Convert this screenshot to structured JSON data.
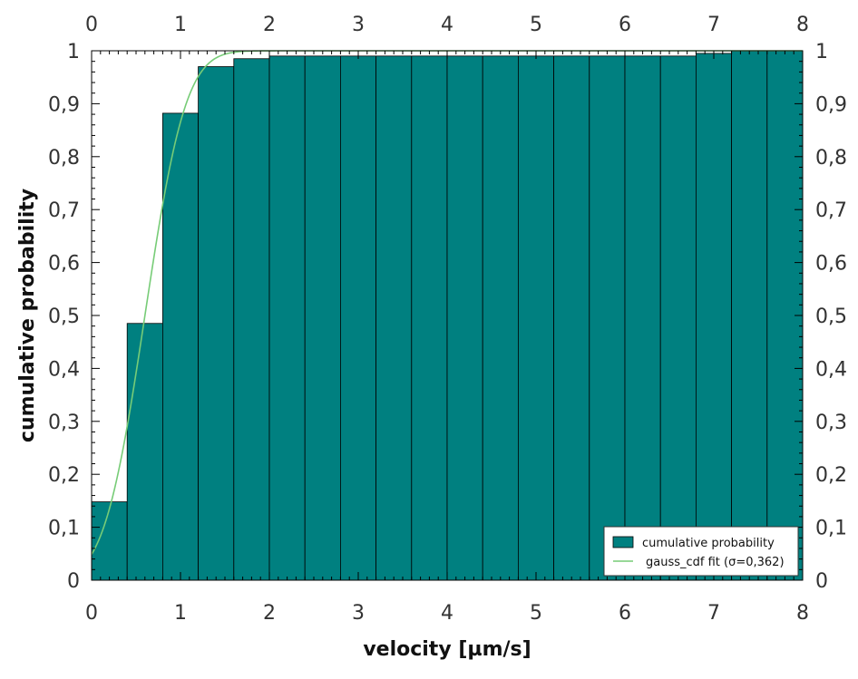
{
  "chart_data": {
    "type": "bar",
    "xlabel": "velocity [µm/s]",
    "ylabel": "cumulative probability",
    "xlim": [
      0,
      8
    ],
    "ylim": [
      0,
      1
    ],
    "x_ticks": [
      "0",
      "1",
      "2",
      "3",
      "4",
      "5",
      "6",
      "7",
      "8"
    ],
    "y_ticks": [
      "0",
      "0,1",
      "0,2",
      "0,3",
      "0,4",
      "0,5",
      "0,6",
      "0,7",
      "0,8",
      "0,9",
      "1"
    ],
    "bin_width": 0.4,
    "bins": [
      {
        "x0": 0.0,
        "x1": 0.4,
        "value": 0.148
      },
      {
        "x0": 0.4,
        "x1": 0.8,
        "value": 0.485
      },
      {
        "x0": 0.8,
        "x1": 1.2,
        "value": 0.882
      },
      {
        "x0": 1.2,
        "x1": 1.6,
        "value": 0.97
      },
      {
        "x0": 1.6,
        "x1": 2.0,
        "value": 0.985
      },
      {
        "x0": 2.0,
        "x1": 2.4,
        "value": 0.99
      },
      {
        "x0": 2.4,
        "x1": 2.8,
        "value": 0.99
      },
      {
        "x0": 2.8,
        "x1": 3.2,
        "value": 0.99
      },
      {
        "x0": 3.2,
        "x1": 3.6,
        "value": 0.99
      },
      {
        "x0": 3.6,
        "x1": 4.0,
        "value": 0.99
      },
      {
        "x0": 4.0,
        "x1": 4.4,
        "value": 0.99
      },
      {
        "x0": 4.4,
        "x1": 4.8,
        "value": 0.99
      },
      {
        "x0": 4.8,
        "x1": 5.2,
        "value": 0.99
      },
      {
        "x0": 5.2,
        "x1": 5.6,
        "value": 0.99
      },
      {
        "x0": 5.6,
        "x1": 6.0,
        "value": 0.99
      },
      {
        "x0": 6.0,
        "x1": 6.4,
        "value": 0.99
      },
      {
        "x0": 6.4,
        "x1": 6.8,
        "value": 0.99
      },
      {
        "x0": 6.8,
        "x1": 7.2,
        "value": 0.995
      },
      {
        "x0": 7.2,
        "x1": 7.6,
        "value": 1.0
      },
      {
        "x0": 7.6,
        "x1": 8.0,
        "value": 1.0
      }
    ],
    "fit": {
      "type": "line",
      "mu": 0.6,
      "sigma": 0.362
    },
    "series": [
      {
        "name": "cumulative probability",
        "color": "#008080"
      },
      {
        "name": "gauss_cdf fit (σ=0,362)",
        "color": "#77cc77"
      }
    ],
    "legend_position": "bottom-right",
    "grid": false
  }
}
